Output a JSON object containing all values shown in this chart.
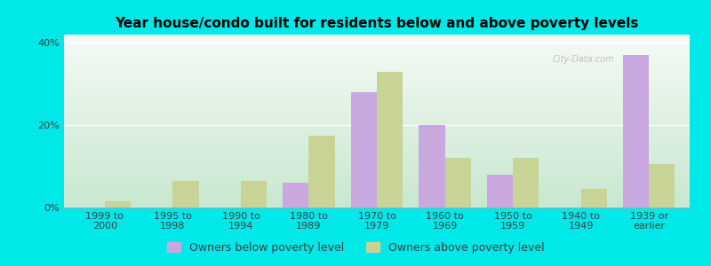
{
  "title": "Year house/condo built for residents below and above poverty levels",
  "categories": [
    "1999 to\n2000",
    "1995 to\n1998",
    "1990 to\n1994",
    "1980 to\n1989",
    "1970 to\n1979",
    "1960 to\n1969",
    "1950 to\n1959",
    "1940 to\n1949",
    "1939 or\nearlier"
  ],
  "below_poverty": [
    0.0,
    0.0,
    0.0,
    6.0,
    28.0,
    20.0,
    8.0,
    0.0,
    37.0
  ],
  "above_poverty": [
    1.5,
    6.5,
    6.5,
    17.5,
    33.0,
    12.0,
    12.0,
    4.5,
    10.5
  ],
  "below_color": "#c9a8e0",
  "above_color": "#c8d496",
  "ylim": [
    0,
    42
  ],
  "yticks": [
    0,
    20,
    40
  ],
  "bar_width": 0.38,
  "legend_below_label": "Owners below poverty level",
  "legend_above_label": "Owners above poverty level",
  "outer_bg": "#00e8e8",
  "plot_bg_top": "#f5faf5",
  "plot_bg_bottom": "#c8e8d0",
  "title_fontsize": 11,
  "tick_fontsize": 8,
  "legend_fontsize": 9,
  "watermark": "City-Data.com"
}
